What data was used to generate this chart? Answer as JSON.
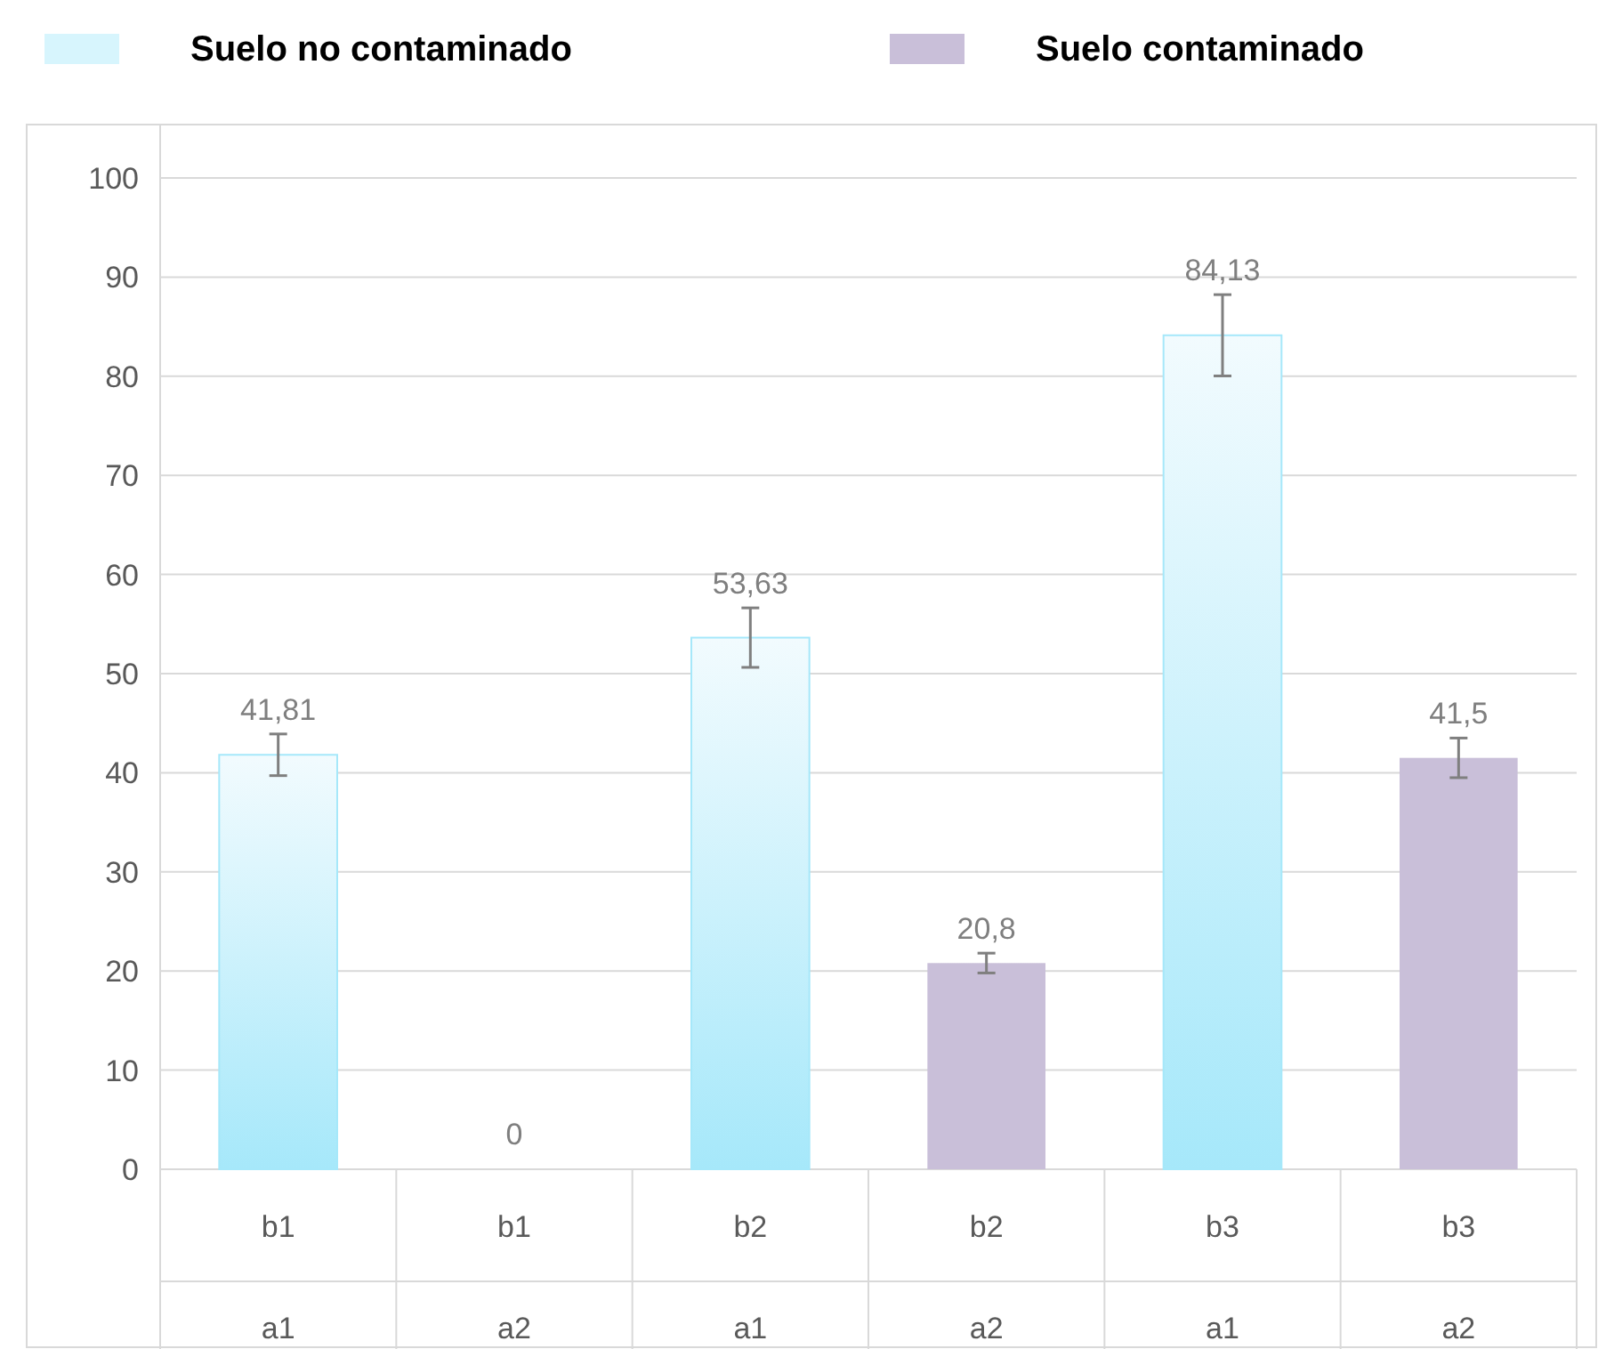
{
  "chart_data": {
    "type": "bar",
    "categories": [
      "b1\na1",
      "b1\na2",
      "b2\na1",
      "b2\na2",
      "b3\na1",
      "b3\na2"
    ],
    "series": [
      {
        "name": "Suelo no contaminado",
        "color": "#a6e8fa",
        "values": [
          41.81,
          null,
          53.63,
          null,
          84.13,
          null
        ],
        "errors": [
          2.1,
          null,
          3,
          null,
          4.1,
          null
        ],
        "value_labels": [
          "41,81",
          null,
          "53,63",
          null,
          "84,13",
          null
        ]
      },
      {
        "name": "Suelo contaminado",
        "color": "#c9bfd9",
        "values": [
          null,
          0,
          null,
          20.8,
          null,
          41.5
        ],
        "errors": [
          null,
          null,
          null,
          1,
          null,
          2
        ],
        "value_labels": [
          null,
          "0",
          null,
          "20,8",
          null,
          "41,5"
        ]
      }
    ],
    "ylim": [
      0,
      100
    ],
    "yticks": [
      0,
      10,
      20,
      30,
      40,
      50,
      60,
      70,
      80,
      90,
      100
    ],
    "grid": "y",
    "legend": "top"
  }
}
